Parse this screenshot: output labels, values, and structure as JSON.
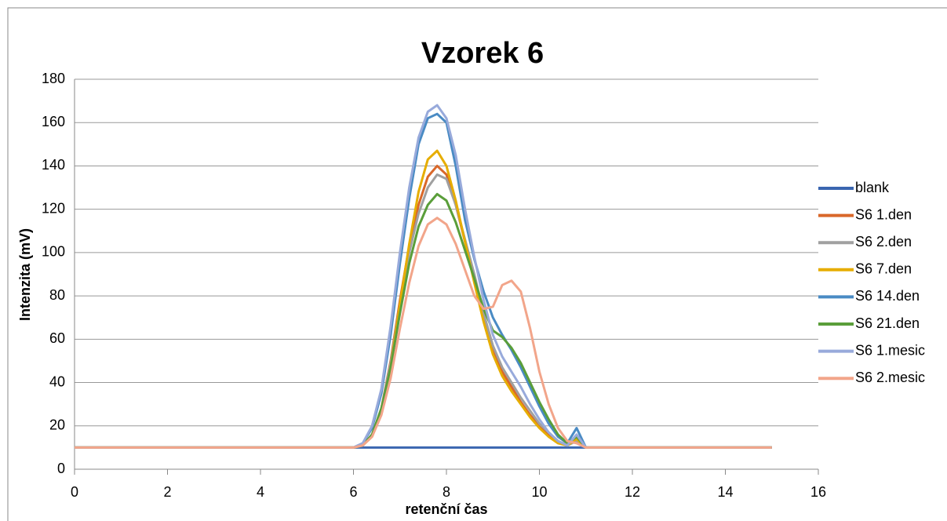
{
  "chart_data": {
    "type": "line",
    "title": "Vzorek 6",
    "x_label": "retenční čas",
    "y_label": "Intenzita (mV)",
    "x": [
      0,
      1,
      2,
      3,
      4,
      5,
      6,
      6.2,
      6.4,
      6.6,
      6.8,
      7,
      7.2,
      7.4,
      7.6,
      7.8,
      8,
      8.2,
      8.4,
      8.6,
      8.8,
      9,
      9.2,
      9.4,
      9.6,
      9.8,
      10,
      10.2,
      10.4,
      10.6,
      10.8,
      11,
      11.2,
      12,
      13,
      14,
      15
    ],
    "series": [
      {
        "name": "blank",
        "color": "#3a66b0",
        "values": [
          10,
          10,
          10,
          10,
          10,
          10,
          10,
          10,
          10,
          10,
          10,
          10,
          10,
          10,
          10,
          10,
          10,
          10,
          10,
          10,
          10,
          10,
          10,
          10,
          10,
          10,
          10,
          10,
          10,
          10,
          10,
          10,
          10,
          10,
          10,
          10,
          10
        ]
      },
      {
        "name": "S6 1.den",
        "color": "#d9682a",
        "values": [
          10,
          10,
          10,
          10,
          10,
          10,
          10,
          11,
          16,
          28,
          50,
          78,
          103,
          122,
          135,
          140,
          136,
          122,
          105,
          88,
          70,
          55,
          45,
          38,
          31,
          25,
          20,
          16,
          13,
          11,
          14,
          10,
          10,
          10,
          10,
          10,
          10
        ]
      },
      {
        "name": "S6 2.den",
        "color": "#a0a0a0",
        "values": [
          10,
          10,
          10,
          10,
          10,
          10,
          10,
          11,
          16,
          28,
          49,
          76,
          100,
          118,
          130,
          136,
          134,
          122,
          106,
          90,
          72,
          57,
          47,
          40,
          33,
          27,
          21,
          17,
          13,
          11,
          13,
          10,
          10,
          10,
          10,
          10,
          10
        ]
      },
      {
        "name": "S6 7.den",
        "color": "#e6ad00",
        "values": [
          10,
          10,
          10,
          10,
          10,
          10,
          10,
          11,
          15,
          26,
          47,
          76,
          104,
          128,
          143,
          147,
          140,
          124,
          105,
          86,
          68,
          53,
          43,
          36,
          30,
          24,
          19,
          15,
          12,
          11,
          14,
          10,
          10,
          10,
          10,
          10,
          10
        ]
      },
      {
        "name": "S6 14.den",
        "color": "#4a8bc4",
        "values": [
          10,
          10,
          10,
          10,
          10,
          10,
          10,
          12,
          19,
          35,
          62,
          95,
          125,
          150,
          162,
          164,
          160,
          140,
          115,
          97,
          82,
          70,
          62,
          55,
          47,
          38,
          29,
          21,
          15,
          12,
          19,
          10,
          10,
          10,
          10,
          10,
          10
        ]
      },
      {
        "name": "S6 21.den",
        "color": "#5a9e3a",
        "values": [
          10,
          10,
          10,
          10,
          10,
          10,
          10,
          11,
          16,
          28,
          47,
          72,
          95,
          112,
          122,
          127,
          124,
          114,
          101,
          88,
          74,
          64,
          61,
          56,
          49,
          40,
          31,
          23,
          16,
          12,
          15,
          10,
          10,
          10,
          10,
          10,
          10
        ]
      },
      {
        "name": "S6 1.mesic",
        "color": "#98aadb",
        "values": [
          10,
          10,
          10,
          10,
          10,
          10,
          10,
          12,
          20,
          37,
          66,
          100,
          130,
          153,
          165,
          168,
          162,
          145,
          120,
          98,
          78,
          62,
          52,
          45,
          38,
          30,
          23,
          17,
          13,
          11,
          16,
          10,
          10,
          10,
          10,
          10,
          10
        ]
      },
      {
        "name": "S6 2.mesic",
        "color": "#f2a58a",
        "values": [
          10,
          10,
          10,
          10,
          10,
          10,
          10,
          11,
          15,
          25,
          42,
          65,
          86,
          103,
          113,
          116,
          113,
          104,
          92,
          80,
          74,
          75,
          85,
          87,
          82,
          65,
          45,
          30,
          19,
          13,
          12,
          10,
          10,
          10,
          10,
          10,
          10
        ]
      }
    ],
    "xlim": [
      0,
      16
    ],
    "xticks": [
      0,
      2,
      4,
      6,
      8,
      10,
      12,
      14,
      16
    ],
    "ylim": [
      0,
      180
    ],
    "yticks": [
      0,
      20,
      40,
      60,
      80,
      100,
      120,
      140,
      160,
      180
    ],
    "grid": true,
    "legend": "right"
  }
}
